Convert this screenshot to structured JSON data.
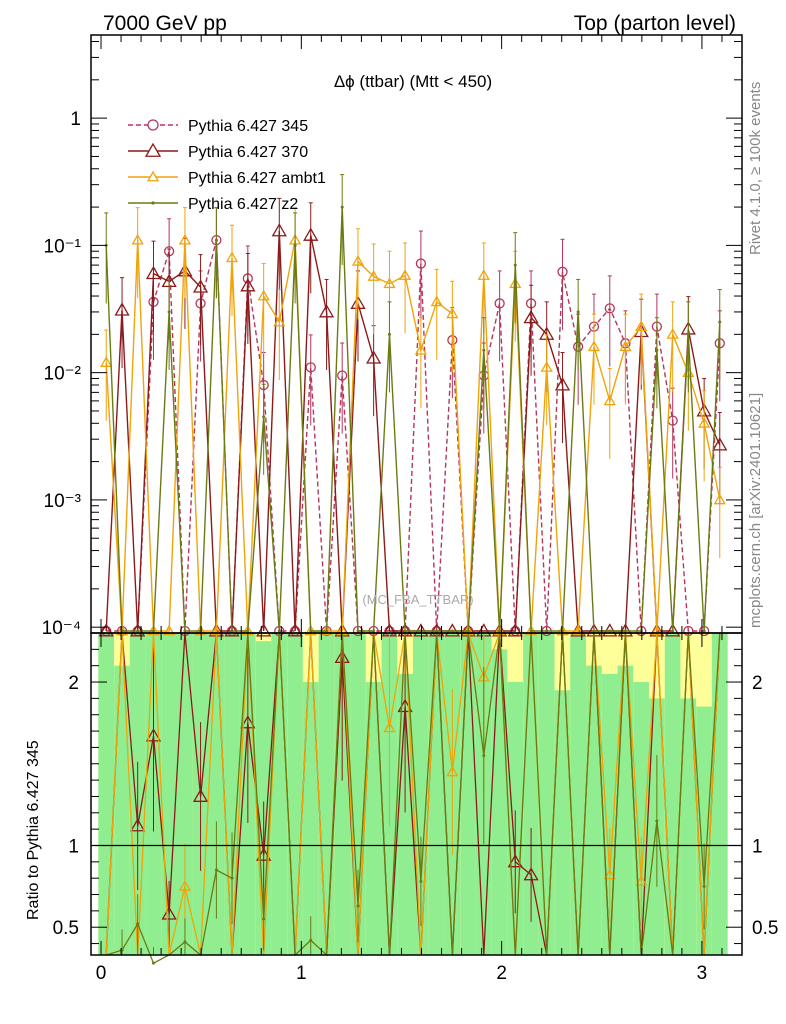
{
  "header": {
    "left": "7000 GeV pp",
    "right": "Top (parton level)"
  },
  "side": {
    "rivet": "Rivet 4.1.0, ≥ 100k events",
    "mcplots": "mcplots.cern.ch [arXiv:2401.10621]"
  },
  "watermark": "(MC_FBA_TTBAR)",
  "chart_data": {
    "type": "line",
    "title": "Δϕ (ttbar) (Mtt < 450)",
    "xlabel": "",
    "ylabel_main": "",
    "ylabel_ratio": "Ratio to Pythia 6.427 345",
    "xlim": [
      -0.05,
      3.2
    ],
    "ylim_main": [
      9e-05,
      4.5
    ],
    "ylim_ratio": [
      0.33,
      2.3
    ],
    "yscale_main": "log",
    "x_ticks": [
      "0",
      "1",
      "2",
      "3"
    ],
    "y_ticks_main": [
      "10⁻⁴",
      "10⁻³",
      "10⁻²",
      "10⁻¹",
      "1"
    ],
    "y_ticks_ratio": [
      "0.5",
      "1",
      "2"
    ],
    "legend_position": "top-left",
    "x": [
      0.026,
      0.105,
      0.183,
      0.262,
      0.34,
      0.419,
      0.497,
      0.576,
      0.654,
      0.733,
      0.812,
      0.89,
      0.969,
      1.047,
      1.126,
      1.204,
      1.283,
      1.361,
      1.44,
      1.518,
      1.597,
      1.676,
      1.754,
      1.833,
      1.911,
      1.99,
      2.068,
      2.147,
      2.225,
      2.304,
      2.382,
      2.461,
      2.54,
      2.618,
      2.697,
      2.775,
      2.854,
      2.932,
      3.011,
      3.089
    ],
    "series": [
      {
        "name": "Pythia 6.427 345",
        "color": "#b5365a",
        "style": "dashed",
        "marker": "circle",
        "values": [
          0,
          0,
          0,
          0.036,
          0.09,
          0,
          0.035,
          0.11,
          0,
          0.055,
          0.008,
          0,
          0,
          0.011,
          0,
          0.0095,
          0,
          0,
          0,
          0,
          0.072,
          0,
          0.018,
          0,
          0.0095,
          0.035,
          0,
          0.035,
          0,
          0.062,
          0.016,
          0.023,
          0.032,
          0.017,
          0,
          0.023,
          0.0042,
          0,
          0,
          0.017
        ],
        "ratio": null
      },
      {
        "name": "Pythia 6.427 370",
        "color": "#8b1a1a",
        "style": "solid",
        "marker": "triangle",
        "values": [
          0,
          0.031,
          0,
          0.06,
          0.052,
          0.063,
          0.047,
          0,
          0,
          0.048,
          0,
          0.13,
          0,
          0.12,
          0.03,
          0,
          0.035,
          0.013,
          0,
          0,
          0,
          0,
          0,
          0,
          0,
          0,
          0,
          0.027,
          0.02,
          0.008,
          0,
          0,
          0,
          0,
          0.021,
          0,
          0,
          0.022,
          0.005,
          0.0027
        ],
        "ratio": [
          null,
          null,
          1.12,
          1.67,
          0.58,
          null,
          1.3,
          null,
          null,
          1.75,
          0.94,
          null,
          null,
          null,
          null,
          2.15,
          null,
          null,
          null,
          1.85,
          null,
          null,
          null,
          null,
          null,
          null,
          0.9,
          0.82,
          null,
          null,
          null,
          null,
          null,
          null,
          null,
          null,
          null,
          null,
          null,
          null
        ]
      },
      {
        "name": "Pythia 6.427 ambt1",
        "color": "#f0a30a",
        "style": "solid",
        "marker": "triangle",
        "values": [
          0.012,
          0,
          0.11,
          0,
          0,
          0.11,
          0,
          0,
          0.08,
          0,
          0.04,
          0.025,
          0.11,
          0,
          0,
          0,
          0.075,
          0.057,
          0.05,
          0.058,
          0.015,
          0.036,
          0.029,
          0,
          0.058,
          0,
          0.05,
          0,
          0.011,
          0,
          0,
          0.016,
          0.006,
          0.016,
          0.023,
          0,
          0.02,
          0.01,
          0.004,
          0.001
        ],
        "ratio": [
          null,
          null,
          null,
          null,
          null,
          0.75,
          null,
          null,
          null,
          null,
          null,
          null,
          null,
          null,
          null,
          null,
          null,
          null,
          1.72,
          null,
          null,
          null,
          1.45,
          null,
          2.03,
          null,
          null,
          null,
          null,
          null,
          null,
          null,
          0.82,
          null,
          0.78,
          null,
          null,
          null,
          null,
          null
        ]
      },
      {
        "name": "Pythia 6.427 z2",
        "color": "#6b7a12",
        "style": "solid",
        "marker": "dot",
        "values": [
          0.1,
          0,
          0,
          0,
          0.03,
          0,
          0,
          0.11,
          0,
          0,
          0.0045,
          0,
          0.1,
          0,
          0,
          0.2,
          0,
          0,
          0.02,
          0,
          0,
          0,
          0,
          0,
          0.015,
          0,
          0.07,
          0,
          0,
          0,
          0.03,
          0,
          0,
          0,
          0,
          0.015,
          0,
          0.02,
          0,
          0.025
        ],
        "ratio": [
          null,
          0.36,
          0.52,
          0.28,
          null,
          0.41,
          null,
          0.85,
          0.8,
          null,
          0.55,
          null,
          null,
          0.42,
          null,
          null,
          0.63,
          null,
          null,
          null,
          0.78,
          null,
          null,
          null,
          1.55,
          null,
          null,
          null,
          null,
          null,
          null,
          null,
          null,
          null,
          null,
          1.15,
          null,
          null,
          0.75,
          null
        ]
      }
    ],
    "band_fill": {
      "green": "#90ee90",
      "yellow": "#ffff99"
    },
    "band_green_low": [
      0.33,
      0.33,
      0.33,
      0.33,
      0.33,
      0.33,
      0.33,
      0.33,
      0.33,
      0.33,
      0.33,
      0.33,
      0.33,
      0.33,
      0.33,
      0.33,
      0.33,
      0.33,
      0.33,
      0.33,
      0.33,
      0.33,
      0.33,
      0.33,
      0.33,
      0.33,
      0.33,
      0.33,
      0.33,
      0.33,
      0.33,
      0.33,
      0.33,
      0.33,
      0.33,
      0.33,
      0.33,
      0.33,
      0.33,
      0.33
    ],
    "band_green_high": [
      2.3,
      2.1,
      2.3,
      2.3,
      2.3,
      2.3,
      2.3,
      2.3,
      2.3,
      2.3,
      2.25,
      2.3,
      2.3,
      2.0,
      2.3,
      2.3,
      2.3,
      2.0,
      2.3,
      2.05,
      2.3,
      2.3,
      2.3,
      2.3,
      2.3,
      2.2,
      2.0,
      2.3,
      2.3,
      1.95,
      2.3,
      2.1,
      2.05,
      2.1,
      2.0,
      1.9,
      2.3,
      1.9,
      1.85,
      2.3
    ],
    "band_yellow_low": [
      0.33,
      0.33,
      0.33,
      0.33,
      0.33,
      0.33,
      0.33,
      0.33,
      0.33,
      0.33,
      0.33,
      0.33,
      0.33,
      0.33,
      0.33,
      0.33,
      0.33,
      0.33,
      0.33,
      0.33,
      0.33,
      0.33,
      0.33,
      0.33,
      0.33,
      0.33,
      0.33,
      0.33,
      0.33,
      0.33,
      0.33,
      0.33,
      0.33,
      0.33,
      0.33,
      0.33,
      0.33,
      0.33,
      0.33,
      0.33
    ],
    "band_yellow_high": [
      2.3,
      2.3,
      2.3,
      2.3,
      2.3,
      2.2,
      2.3,
      2.3,
      2.3,
      2.3,
      2.3,
      2.3,
      2.3,
      2.3,
      2.3,
      2.3,
      2.3,
      2.3,
      2.3,
      2.3,
      2.3,
      2.3,
      2.3,
      2.3,
      2.3,
      2.3,
      2.3,
      2.3,
      2.3,
      2.3,
      2.3,
      2.3,
      2.3,
      2.3,
      2.3,
      2.3,
      2.3,
      2.3,
      2.3,
      2.3
    ]
  }
}
